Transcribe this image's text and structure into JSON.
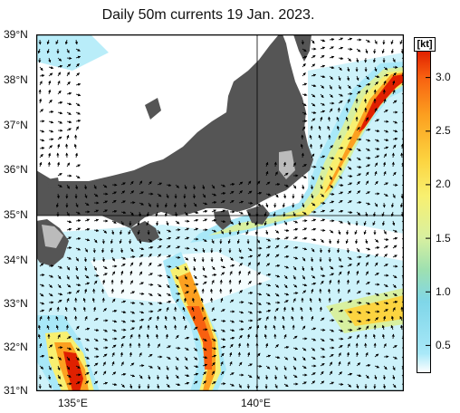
{
  "title": "Daily 50m currents 19 Jan. 2023.",
  "lat_labels": [
    "39°N",
    "38°N",
    "37°N",
    "36°N",
    "35°N",
    "34°N",
    "33°N",
    "32°N",
    "31°N"
  ],
  "lon_labels": [
    "135°E",
    "140°E"
  ],
  "colorbar": {
    "unit": "[kt]",
    "ticks": [
      "3.0",
      "2.5",
      "2.0",
      "1.5",
      "1.0",
      "0.5"
    ],
    "range": [
      0.25,
      3.25
    ],
    "stops": [
      "#ffffff",
      "#a8e8f8",
      "#7fd6e8",
      "#9ee0b0",
      "#d8f0a0",
      "#f8f070",
      "#fcd440",
      "#fca020",
      "#f86010",
      "#e02000"
    ]
  },
  "colors": {
    "land": "#555555",
    "ocean": "#ffffff",
    "vector": "#000000"
  }
}
